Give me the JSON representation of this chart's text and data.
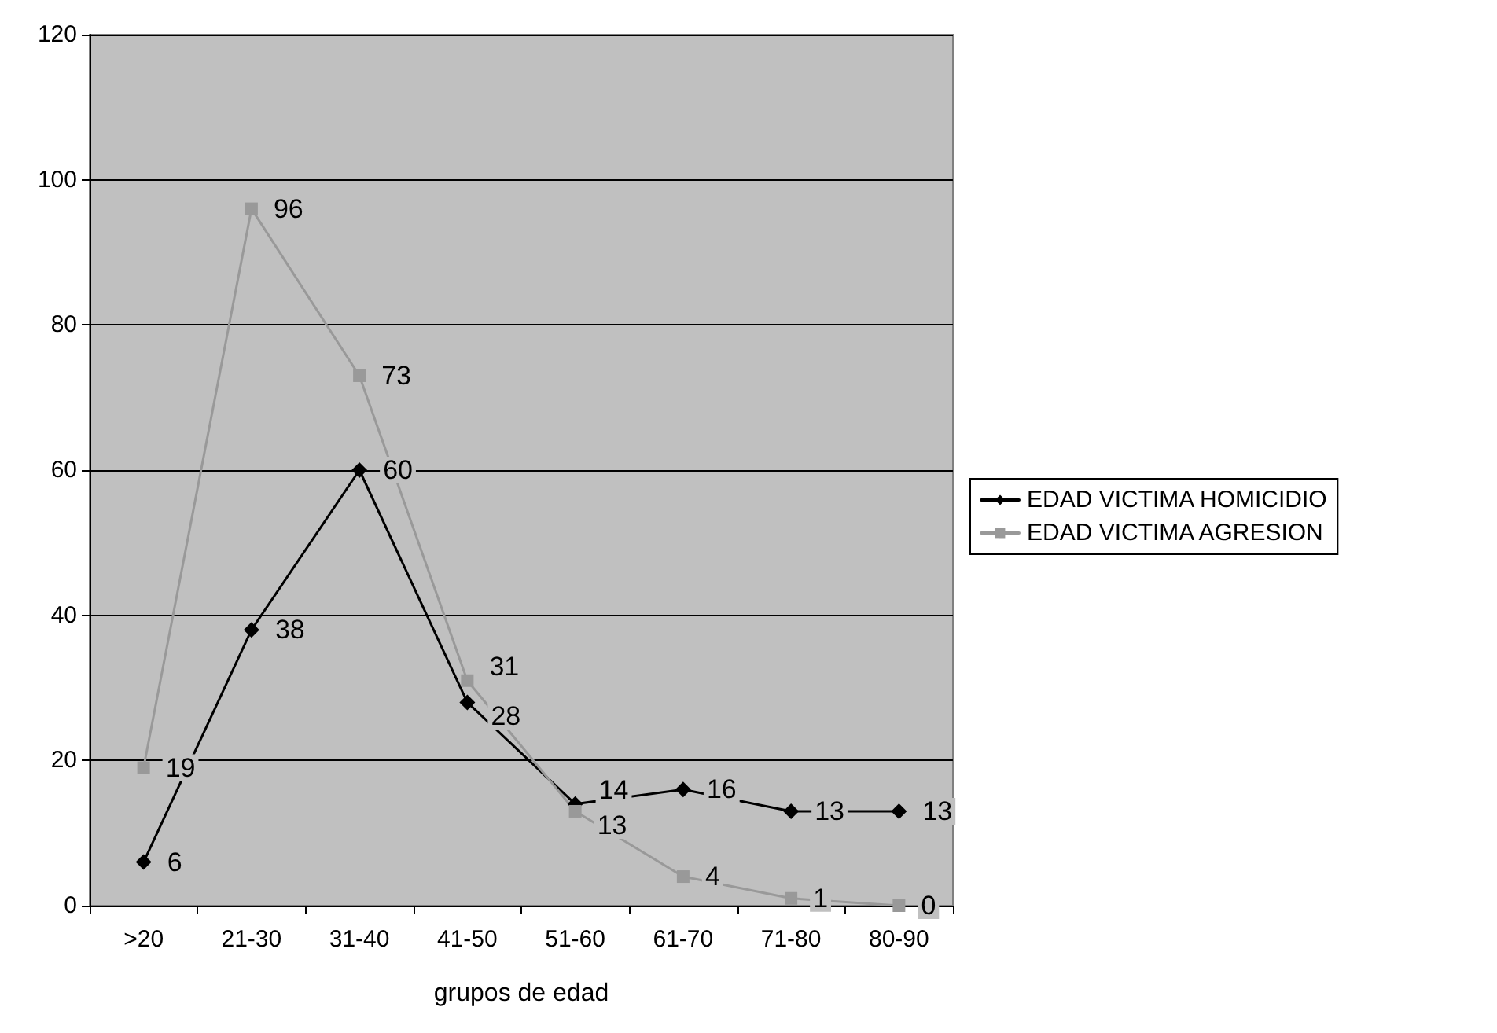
{
  "chart_data": {
    "type": "line",
    "xlabel": "grupos de edad",
    "categories": [
      ">20",
      "21-30",
      "31-40",
      "41-50",
      "51-60",
      "61-70",
      "71-80",
      "80-90"
    ],
    "series": [
      {
        "name": "EDAD VICTIMA HOMICIDIO",
        "color": "#000000",
        "marker": "diamond",
        "values": [
          6,
          38,
          60,
          28,
          14,
          16,
          13,
          13
        ]
      },
      {
        "name": "EDAD VICTIMA AGRESION",
        "color": "#999999",
        "marker": "square",
        "values": [
          19,
          96,
          73,
          31,
          13,
          4,
          1,
          0
        ]
      }
    ],
    "ylim": [
      0,
      120
    ],
    "yticks": [
      0,
      20,
      40,
      60,
      80,
      100,
      120
    ],
    "grid": "y",
    "legend": "right",
    "data_labels": true,
    "line_style": "solid"
  }
}
